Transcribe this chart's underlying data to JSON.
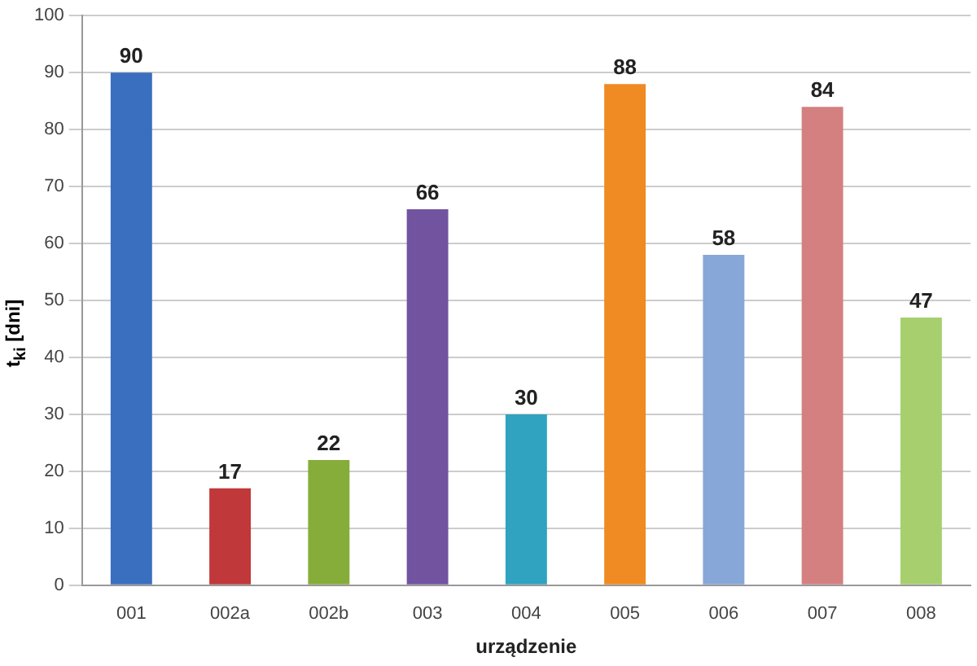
{
  "chart_data": {
    "type": "bar",
    "xlabel": "urządzenie",
    "ylabel": "t$_{ki}$ [dni]",
    "categories": [
      "001",
      "002a",
      "002b",
      "003",
      "004",
      "005",
      "006",
      "007",
      "008"
    ],
    "values": [
      90,
      17,
      22,
      66,
      30,
      88,
      58,
      84,
      47
    ],
    "colors": [
      "#3a6fbf",
      "#c0383a",
      "#86ad3a",
      "#7253a0",
      "#2fa3c0",
      "#f08a22",
      "#87a7d8",
      "#d47f80",
      "#a7cf6e"
    ],
    "ylim": [
      0,
      100
    ],
    "yticks": [
      0,
      10,
      20,
      30,
      40,
      50,
      60,
      70,
      80,
      90,
      100
    ],
    "grid": "y",
    "data_labels": true
  }
}
